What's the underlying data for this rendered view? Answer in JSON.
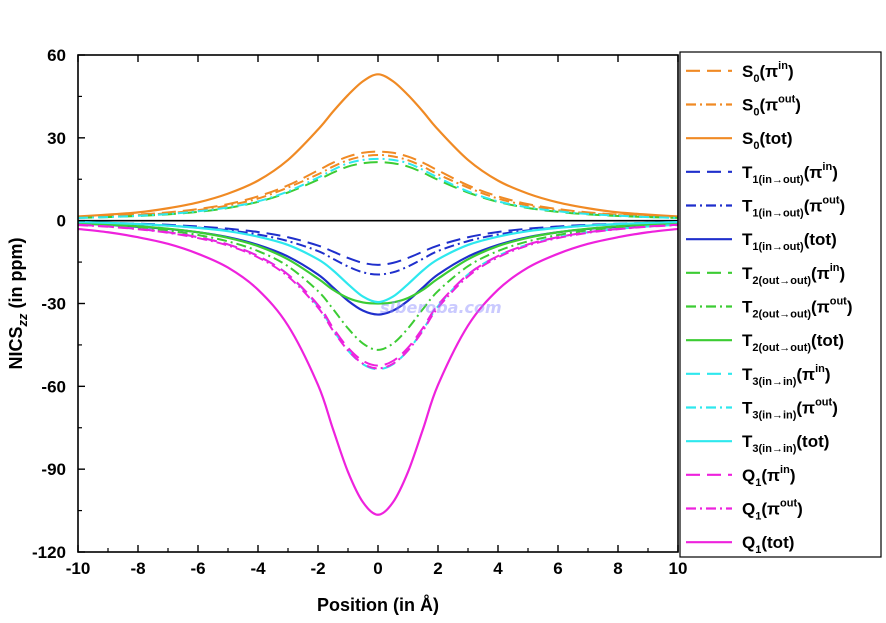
{
  "chart_data": {
    "type": "line",
    "xlabel": "Position (in Å)",
    "ylabel": {
      "main": "NICS",
      "sub": "zz",
      "rest": " (in ppm)"
    },
    "xlim": [
      -10,
      10
    ],
    "ylim": [
      -120,
      60
    ],
    "xticks": [
      -10,
      -8,
      -6,
      -4,
      -2,
      0,
      2,
      4,
      6,
      8,
      10
    ],
    "yticks": [
      -120,
      -90,
      -60,
      -30,
      0,
      30,
      60
    ],
    "zero_line": true,
    "grid": false,
    "legend_placement": "right",
    "watermark": "siberoba.com",
    "x": [
      -10,
      -9,
      -8,
      -7,
      -6,
      -5,
      -4,
      -3,
      -2,
      -1.5,
      -1,
      -0.5,
      0,
      0.5,
      1,
      1.5,
      2,
      3,
      4,
      5,
      6,
      7,
      8,
      9,
      10
    ],
    "series": [
      {
        "name": "S0(πin)",
        "label": {
          "main": "S",
          "sub": "0",
          "open": "(π",
          "sup": "in",
          "close": ")"
        },
        "color": "#f08a24",
        "dash": "dash",
        "values": [
          1.5,
          1.7,
          2.2,
          3.0,
          4.2,
          6.0,
          8.8,
          12.8,
          18.2,
          21.0,
          23.2,
          24.6,
          25.0,
          24.6,
          23.2,
          21.0,
          18.2,
          12.8,
          8.8,
          6.0,
          4.2,
          3.0,
          2.2,
          1.7,
          1.5
        ]
      },
      {
        "name": "S0(πout)",
        "label": {
          "main": "S",
          "sub": "0",
          "open": "(π",
          "sup": "out",
          "close": ")"
        },
        "color": "#f08a24",
        "dash": "dashdot",
        "values": [
          1.2,
          1.5,
          2.0,
          2.7,
          3.8,
          5.5,
          8.0,
          12.0,
          16.8,
          19.6,
          21.9,
          23.3,
          23.8,
          23.3,
          21.9,
          19.6,
          16.8,
          12.0,
          8.0,
          5.5,
          3.8,
          2.7,
          2.0,
          1.5,
          1.2
        ]
      },
      {
        "name": "S0(tot)",
        "label": {
          "main": "S",
          "sub": "0",
          "open": "(tot)",
          "sup": "",
          "close": ""
        },
        "color": "#f08a24",
        "dash": "solid",
        "values": [
          1.5,
          2.2,
          3.0,
          4.5,
          6.6,
          9.8,
          14.5,
          22.0,
          33.0,
          39.5,
          45.5,
          50.5,
          53.0,
          50.5,
          45.5,
          39.5,
          33.0,
          22.0,
          14.5,
          9.8,
          6.6,
          4.5,
          3.0,
          2.2,
          1.5
        ]
      },
      {
        "name": "T1(in→out)(πin)",
        "label": {
          "main": "T",
          "sub": "1(in→out)",
          "open": "(π",
          "sup": "in",
          "close": ")"
        },
        "color": "#1f2fcc",
        "dash": "dash",
        "values": [
          -0.5,
          -0.8,
          -1.1,
          -1.5,
          -2.1,
          -2.9,
          -4.1,
          -6.0,
          -9.0,
          -11.2,
          -13.5,
          -15.3,
          -16.0,
          -15.3,
          -13.5,
          -11.2,
          -9.0,
          -6.0,
          -4.1,
          -2.9,
          -2.1,
          -1.5,
          -1.1,
          -0.8,
          -0.5
        ]
      },
      {
        "name": "T1(in→out)(πout)",
        "label": {
          "main": "T",
          "sub": "1(in→out)",
          "open": "(π",
          "sup": "out",
          "close": ")"
        },
        "color": "#1f2fcc",
        "dash": "dashdot",
        "values": [
          -0.6,
          -0.9,
          -1.3,
          -1.8,
          -2.5,
          -3.5,
          -5.0,
          -7.4,
          -11.0,
          -13.8,
          -16.6,
          -18.7,
          -19.5,
          -18.7,
          -16.6,
          -13.8,
          -11.0,
          -7.4,
          -5.0,
          -3.5,
          -2.5,
          -1.8,
          -1.3,
          -0.9,
          -0.6
        ]
      },
      {
        "name": "T1(in→out)(tot)",
        "label": {
          "main": "T",
          "sub": "1(in→out)",
          "open": "(tot)",
          "sup": "",
          "close": ""
        },
        "color": "#1f2fcc",
        "dash": "solid",
        "values": [
          -1.0,
          -1.5,
          -2.2,
          -3.0,
          -4.2,
          -6.0,
          -8.8,
          -13.0,
          -19.5,
          -24.2,
          -29.0,
          -32.6,
          -34.0,
          -32.6,
          -29.0,
          -24.2,
          -19.5,
          -13.0,
          -8.8,
          -6.0,
          -4.2,
          -3.0,
          -2.2,
          -1.5,
          -1.0
        ]
      },
      {
        "name": "T2(out→out)(πin)",
        "label": {
          "main": "T",
          "sub": "2(out→out)",
          "open": "(π",
          "sup": "in",
          "close": ")"
        },
        "color": "#3ccc33",
        "dash": "dash",
        "values": [
          1.0,
          1.3,
          1.7,
          2.3,
          3.2,
          4.6,
          6.8,
          10.2,
          14.8,
          17.4,
          19.6,
          20.8,
          21.2,
          20.8,
          19.6,
          17.4,
          14.8,
          10.2,
          6.8,
          4.6,
          3.2,
          2.3,
          1.7,
          1.3,
          1.0
        ]
      },
      {
        "name": "T2(out→out)(πout)",
        "label": {
          "main": "T",
          "sub": "2(out→out)",
          "open": "(π",
          "sup": "out",
          "close": ")"
        },
        "color": "#3ccc33",
        "dash": "dashdot",
        "values": [
          -1.3,
          -1.8,
          -2.6,
          -3.6,
          -5.2,
          -7.5,
          -11.0,
          -16.5,
          -25.5,
          -32.0,
          -39.0,
          -44.5,
          -46.8,
          -44.5,
          -39.0,
          -32.0,
          -25.5,
          -16.5,
          -11.0,
          -7.5,
          -5.2,
          -3.6,
          -2.6,
          -1.8,
          -1.3
        ]
      },
      {
        "name": "T2(out→out)(tot)",
        "label": {
          "main": "T",
          "sub": "2(out→out)",
          "open": "(tot)",
          "sup": "",
          "close": ""
        },
        "color": "#3ccc33",
        "dash": "solid",
        "values": [
          -1.0,
          -1.4,
          -2.0,
          -2.9,
          -4.2,
          -6.2,
          -9.2,
          -14.0,
          -21.0,
          -25.0,
          -28.0,
          -29.6,
          -30.0,
          -29.6,
          -28.0,
          -25.0,
          -21.0,
          -14.0,
          -9.2,
          -6.2,
          -4.2,
          -2.9,
          -2.0,
          -1.4,
          -1.0
        ]
      },
      {
        "name": "T3(in→in)(πin)",
        "label": {
          "main": "T",
          "sub": "3(in→in)",
          "open": "(π",
          "sup": "in",
          "close": ")"
        },
        "color": "#2ee8ee",
        "dash": "dash",
        "values": [
          -1.5,
          -2.1,
          -3.0,
          -4.2,
          -6.0,
          -8.6,
          -12.8,
          -19.5,
          -31.0,
          -39.5,
          -47.0,
          -52.0,
          -53.8,
          -52.0,
          -47.0,
          -39.5,
          -31.0,
          -19.5,
          -12.8,
          -8.6,
          -6.0,
          -4.2,
          -3.0,
          -2.1,
          -1.5
        ]
      },
      {
        "name": "T3(in→in)(πout)",
        "label": {
          "main": "T",
          "sub": "3(in→in)",
          "open": "(π",
          "sup": "out",
          "close": ")"
        },
        "color": "#2ee8ee",
        "dash": "dashdot",
        "values": [
          1.0,
          1.3,
          1.8,
          2.4,
          3.4,
          4.8,
          7.0,
          10.6,
          15.6,
          18.4,
          20.8,
          22.0,
          22.4,
          22.0,
          20.8,
          18.4,
          15.6,
          10.6,
          7.0,
          4.8,
          3.4,
          2.4,
          1.8,
          1.3,
          1.0
        ]
      },
      {
        "name": "T3(in→in)(tot)",
        "label": {
          "main": "T",
          "sub": "3(in→in)",
          "open": "(tot)",
          "sup": "",
          "close": ""
        },
        "color": "#2ee8ee",
        "dash": "solid",
        "values": [
          -0.5,
          -0.8,
          -1.2,
          -1.8,
          -2.6,
          -3.8,
          -5.8,
          -8.8,
          -14.0,
          -18.0,
          -23.0,
          -27.5,
          -29.5,
          -27.5,
          -23.0,
          -18.0,
          -14.0,
          -8.8,
          -5.8,
          -3.8,
          -2.6,
          -1.8,
          -1.2,
          -0.8,
          -0.5
        ]
      },
      {
        "name": "Q1(πin)",
        "label": {
          "main": "Q",
          "sub": "1",
          "open": "(π",
          "sup": "in",
          "close": ")"
        },
        "color": "#ee22dd",
        "dash": "dash",
        "values": [
          -1.5,
          -2.1,
          -3.0,
          -4.2,
          -6.0,
          -8.6,
          -12.8,
          -19.5,
          -30.5,
          -38.8,
          -46.0,
          -50.8,
          -52.5,
          -50.8,
          -46.0,
          -38.8,
          -30.5,
          -19.5,
          -12.8,
          -8.6,
          -6.0,
          -4.2,
          -3.0,
          -2.1,
          -1.5
        ]
      },
      {
        "name": "Q1(πout)",
        "label": {
          "main": "Q",
          "sub": "1",
          "open": "(π",
          "sup": "out",
          "close": ")"
        },
        "color": "#ee22dd",
        "dash": "dashdot",
        "values": [
          -1.6,
          -2.2,
          -3.1,
          -4.4,
          -6.3,
          -9.0,
          -13.3,
          -20.2,
          -31.5,
          -39.8,
          -47.0,
          -51.8,
          -53.5,
          -51.8,
          -47.0,
          -39.8,
          -31.5,
          -20.2,
          -13.3,
          -9.0,
          -6.3,
          -4.4,
          -3.1,
          -2.2,
          -1.6
        ]
      },
      {
        "name": "Q1(tot)",
        "label": {
          "main": "Q",
          "sub": "1",
          "open": "(tot)",
          "sup": "",
          "close": ""
        },
        "color": "#ee22dd",
        "dash": "solid",
        "values": [
          -3.0,
          -4.2,
          -6.0,
          -8.4,
          -12.0,
          -17.0,
          -25.0,
          -38.0,
          -59.5,
          -75.5,
          -91.0,
          -102.0,
          -106.5,
          -102.0,
          -91.0,
          -75.5,
          -59.5,
          -38.0,
          -25.0,
          -17.0,
          -12.0,
          -8.4,
          -6.0,
          -4.2,
          -3.0
        ]
      }
    ]
  }
}
